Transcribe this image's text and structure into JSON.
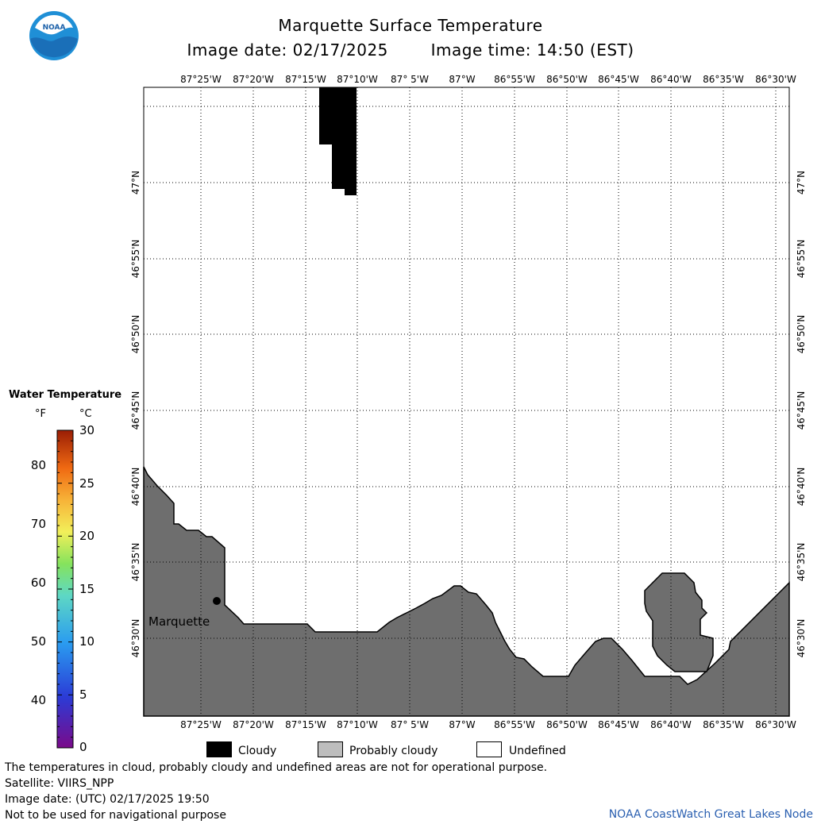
{
  "title": "Marquette Surface Temperature",
  "subtitle_date": "Image date: 02/17/2025",
  "subtitle_time": "Image time: 14:50 (EST)",
  "logo_text": "NOAA",
  "lon_labels": [
    "87°25'W",
    "87°20'W",
    "87°15'W",
    "87°10'W",
    "87° 5'W",
    "87°W",
    "86°55'W",
    "86°50'W",
    "86°45'W",
    "86°40'W",
    "86°35'W",
    "86°30'W"
  ],
  "lat_labels": [
    "47°N",
    "46°55'N",
    "46°50'N",
    "46°45'N",
    "46°40'N",
    "46°35'N",
    "46°30'N"
  ],
  "place": {
    "name": "Marquette"
  },
  "colorbar": {
    "title": "Water Temperature",
    "unit_f": "°F",
    "unit_c": "°C",
    "f_ticks": [
      "80",
      "70",
      "60",
      "50",
      "40"
    ],
    "c_ticks": [
      "30",
      "25",
      "20",
      "15",
      "10",
      "5",
      "0"
    ]
  },
  "legend": {
    "cloudy": "Cloudy",
    "probably_cloudy": "Probably cloudy",
    "undefined": "Undefined"
  },
  "colors": {
    "cloudy": "#000000",
    "probably_cloudy": "#bdbdbd",
    "land": "#6e6e6e",
    "undefined": "#ffffff",
    "credit": "#2a5fb0"
  },
  "notes": {
    "warning": "The temperatures in cloud, probably cloudy and undefined areas are not for operational purpose.",
    "satellite": "Satellite: VIIRS_NPP",
    "utc_date": "Image date: (UTC) 02/17/2025  19:50",
    "navigation": "Not to be used for navigational purpose"
  },
  "credit": "NOAA CoastWatch Great Lakes Node"
}
